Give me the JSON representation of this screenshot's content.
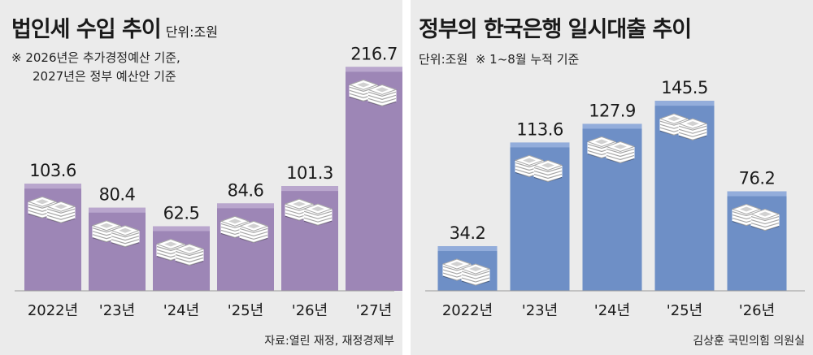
{
  "colors": {
    "panel_bg": "#ebebeb",
    "left_bar": "#9d86b6",
    "left_bar_top": "#b9a6cd",
    "right_bar": "#6e8fc6",
    "right_bar_top": "#93addb"
  },
  "left": {
    "title": "법인세 수입 추이",
    "unit": "단위:조원",
    "note_line1": "※ 2026년은 추가경정예산 기준,",
    "note_line2": "2027년은 정부 예산안 기준",
    "source": "자료:열린 재정, 재정경제부"
  },
  "right": {
    "title": "정부의 한국은행 일시대출 추이",
    "unit": "단위:조원",
    "note": "※ 1~8월 누적 기준",
    "source": "김상훈 국민의힘 의원실"
  },
  "chart_data": [
    {
      "type": "bar",
      "title": "법인세 수입 추이",
      "unit": "단위:조원",
      "categories": [
        "2022년",
        "'23년",
        "'24년",
        "'25년",
        "'26년",
        "'27년"
      ],
      "values": [
        103.6,
        80.4,
        62.5,
        84.6,
        101.3,
        216.7
      ],
      "value_labels": [
        "103.6",
        "80.4",
        "62.5",
        "84.6",
        "101.3",
        "216.7"
      ],
      "legend": "none",
      "grid": false
    },
    {
      "type": "bar",
      "title": "정부의 한국은행 일시대출 추이",
      "unit": "단위:조원",
      "categories": [
        "2022년",
        "'23년",
        "'24년",
        "'25년",
        "'26년"
      ],
      "values": [
        34.2,
        113.6,
        127.9,
        145.5,
        76.2
      ],
      "value_labels": [
        "34.2",
        "113.6",
        "127.9",
        "145.5",
        "76.2"
      ],
      "legend": "none",
      "grid": false
    }
  ]
}
